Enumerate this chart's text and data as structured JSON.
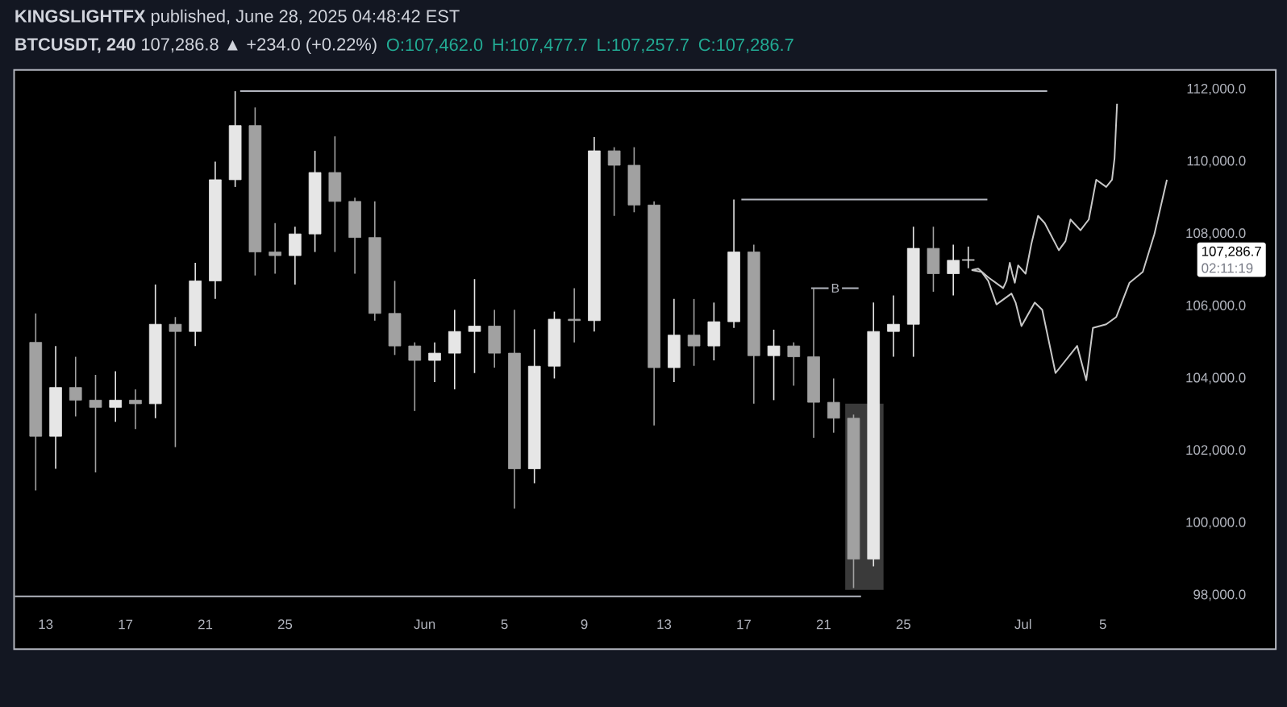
{
  "chart_data": {
    "type": "candlestick",
    "title": "**KINGSLIGHTFX** published, June 28, 2025 04:48:42 EST",
    "subtitle": "**BTCUSDT, 240** 107,286.8 ▲ +234.0 (+0.22%)",
    "annotations": [
      "O:107,462.0",
      "H:107,477.7",
      "L:107,257.7",
      "C:107,286.7",
      "107,286.7",
      "02:11:19",
      {
        "text": "B",
        "x": "2025-06-21T14:00",
        "y": 106500
      }
    ],
    "colors": [
      "#a1a1a1",
      "#e6e6e6",
      "#a1a1a1",
      "#a1a1a1",
      "#e6e6e6",
      "#a1a1a1",
      "#e6e6e6",
      "#a1a1a1",
      "#e6e6e6",
      "#e6e6e6",
      "#e6e6e6",
      "#a1a1a1",
      "#a1a1a1",
      "#e6e6e6",
      "#e6e6e6",
      "#a1a1a1",
      "#a1a1a1",
      "#a1a1a1",
      "#a1a1a1",
      "#a1a1a1",
      "#e6e6e6",
      "#e6e6e6",
      "#e6e6e6",
      "#a1a1a1",
      "#a1a1a1",
      "#e6e6e6",
      "#e6e6e6",
      "#a1a1a1",
      "#e6e6e6",
      "#a1a1a1",
      "#a1a1a1",
      "#a1a1a1",
      "#e6e6e6",
      "#a1a1a1",
      "#e6e6e6",
      "#e6e6e6",
      "#a1a1a1",
      "#e6e6e6",
      "#a1a1a1",
      "#a1a1a1",
      "#a1a1a1",
      "#a1a1a1",
      "#e6e6e6",
      "#e6e6e6",
      "#e6e6e6",
      "#a1a1a1",
      "#e6e6e6",
      "#e6e6e6"
    ],
    "x": [
      "2025-05-12T12:00",
      "2025-05-13T12:00",
      "2025-05-14T12:00",
      "2025-05-15T12:00",
      "2025-05-16T12:00",
      "2025-05-17T12:00",
      "2025-05-18T12:00",
      "2025-05-19T12:00",
      "2025-05-20T12:00",
      "2025-05-21T12:00",
      "2025-05-22T12:00",
      "2025-05-23T12:00",
      "2025-05-24T12:00",
      "2025-05-25T12:00",
      "2025-05-26T12:00",
      "2025-05-27T12:00",
      "2025-05-28T12:00",
      "2025-05-29T12:00",
      "2025-05-30T12:00",
      "2025-05-31T12:00",
      "2025-06-01T12:00",
      "2025-06-02T12:00",
      "2025-06-03T12:00",
      "2025-06-04T12:00",
      "2025-06-05T12:00",
      "2025-06-06T12:00",
      "2025-06-07T12:00",
      "2025-06-08T12:00",
      "2025-06-09T12:00",
      "2025-06-10T12:00",
      "2025-06-11T12:00",
      "2025-06-12T12:00",
      "2025-06-13T12:00",
      "2025-06-14T12:00",
      "2025-06-15T12:00",
      "2025-06-16T12:00",
      "2025-06-17T12:00",
      "2025-06-18T12:00",
      "2025-06-19T12:00",
      "2025-06-20T12:00",
      "2025-06-21T12:00",
      "2025-06-22T12:00",
      "2025-06-23T12:00",
      "2025-06-24T12:00",
      "2025-06-25T12:00",
      "2025-06-26T12:00",
      "2025-06-27T12:00",
      "2025-06-28T06:00"
    ],
    "ohlc": [
      [
        105000,
        105800,
        100900,
        102400
      ],
      [
        102400,
        104900,
        101500,
        103750
      ],
      [
        103750,
        104600,
        102950,
        103400
      ],
      [
        103400,
        104100,
        101400,
        103200
      ],
      [
        103200,
        104200,
        102800,
        103400
      ],
      [
        103400,
        103700,
        102600,
        103300
      ],
      [
        103300,
        106600,
        102900,
        105500
      ],
      [
        105500,
        105700,
        102100,
        105300
      ],
      [
        105300,
        107200,
        104900,
        106700
      ],
      [
        106700,
        110000,
        106200,
        109500
      ],
      [
        109500,
        111950,
        109300,
        111000
      ],
      [
        111000,
        111500,
        106850,
        107500
      ],
      [
        107500,
        108300,
        106900,
        107400
      ],
      [
        107400,
        108200,
        106600,
        108000
      ],
      [
        108000,
        110300,
        107500,
        109700
      ],
      [
        109700,
        110700,
        107500,
        108900
      ],
      [
        108900,
        109000,
        106900,
        107900
      ],
      [
        107900,
        108900,
        105600,
        105800
      ],
      [
        105800,
        106700,
        104650,
        104900
      ],
      [
        104900,
        105000,
        103100,
        104500
      ],
      [
        104500,
        105000,
        103900,
        104700
      ],
      [
        104700,
        105900,
        103700,
        105300
      ],
      [
        105300,
        106750,
        104150,
        105450
      ],
      [
        105450,
        105900,
        104300,
        104700
      ],
      [
        104700,
        105900,
        100400,
        101500
      ],
      [
        101500,
        105360,
        101100,
        104340
      ],
      [
        104340,
        105850,
        104000,
        105640
      ],
      [
        105640,
        106500,
        105000,
        105600
      ],
      [
        105600,
        110680,
        105300,
        110300
      ],
      [
        110300,
        110400,
        108500,
        109900
      ],
      [
        109900,
        110400,
        108600,
        108800
      ],
      [
        108800,
        108900,
        102700,
        104300
      ],
      [
        104300,
        106200,
        103900,
        105200
      ],
      [
        105200,
        106200,
        104350,
        104900
      ],
      [
        104900,
        106100,
        104500,
        105570
      ],
      [
        105570,
        108950,
        105400,
        107500
      ],
      [
        107500,
        107700,
        103300,
        104630
      ],
      [
        104630,
        105350,
        103400,
        104900
      ],
      [
        104900,
        105000,
        103800,
        104600
      ],
      [
        104600,
        106500,
        102360,
        103340
      ],
      [
        103340,
        104000,
        102500,
        102900
      ],
      [
        102900,
        103000,
        98200,
        99000
      ],
      [
        99000,
        106100,
        98800,
        105300
      ],
      [
        105300,
        106300,
        104600,
        105500
      ],
      [
        105500,
        108200,
        104600,
        107600
      ],
      [
        107600,
        108200,
        106400,
        106900
      ],
      [
        106900,
        107700,
        106300,
        107270
      ],
      [
        107270,
        107650,
        107050,
        107286.7
      ]
    ],
    "series": [
      {
        "type": "bar",
        "x": [
          "2025-06-23T01:00"
        ],
        "base": [
          98150
        ],
        "values": [
          5150
        ],
        "color": "#3a3a3a"
      },
      {
        "type": "line",
        "x": [
          "2025-05-22T18:00",
          "2025-07-02T05:00"
        ],
        "values": [
          111950,
          111950
        ],
        "color": "#b2b5be"
      },
      {
        "type": "line",
        "x": [
          "2025-06-16T21:00",
          "2025-06-29T05:00"
        ],
        "values": [
          108950,
          108950
        ],
        "color": "#b2b5be"
      },
      {
        "type": "line",
        "x": [
          "2025-05-11T11:00",
          "2025-06-22T21:00"
        ],
        "values": [
          97970,
          97970
        ],
        "color": "#b2b5be"
      },
      {
        "type": "line",
        "x": [
          "2025-06-20T09:00",
          "2025-06-22T18:00"
        ],
        "values": [
          106500,
          106500
        ],
        "color": "#b2b5be"
      },
      {
        "type": "line",
        "x": [
          "2025-06-28T10:00",
          "2025-06-28T18:00",
          "2025-06-29T06:00",
          "2025-06-30T00:00",
          "2025-06-30T04:00",
          "2025-06-30T08:00",
          "2025-06-30T11:00",
          "2025-06-30T14:00",
          "2025-06-30T18:00",
          "2025-07-01T03:00",
          "2025-07-01T10:00",
          "2025-07-01T18:00",
          "2025-07-02T02:00",
          "2025-07-02T19:00",
          "2025-07-03T03:00",
          "2025-07-03T09:00",
          "2025-07-03T21:00",
          "2025-07-04T07:00",
          "2025-07-04T16:00",
          "2025-07-05T04:00",
          "2025-07-05T11:00",
          "2025-07-05T14:00",
          "2025-07-05T17:00"
        ],
        "values": [
          107000,
          107040,
          106800,
          106500,
          106700,
          107200,
          106900,
          106650,
          107130,
          106900,
          107730,
          108500,
          108300,
          107550,
          107800,
          108400,
          108100,
          108400,
          109500,
          109300,
          109500,
          110100,
          111600
        ],
        "color": "#c8c8c8"
      },
      {
        "type": "line",
        "x": [
          "2025-06-28T10:00",
          "2025-06-28T22:00",
          "2025-06-29T06:00",
          "2025-06-29T16:00",
          "2025-06-30T10:00",
          "2025-06-30T15:00",
          "2025-06-30T22:00",
          "2025-07-01T14:00",
          "2025-07-01T23:00",
          "2025-07-02T15:00",
          "2025-07-03T17:00",
          "2025-07-04T04:00",
          "2025-07-04T12:00",
          "2025-07-05T04:00",
          "2025-07-05T16:00",
          "2025-07-06T08:00",
          "2025-07-07T00:00",
          "2025-07-07T14:00",
          "2025-07-08T05:00"
        ],
        "values": [
          107000,
          106950,
          106700,
          106050,
          106350,
          106100,
          105450,
          106100,
          105900,
          104150,
          104900,
          103950,
          105400,
          105500,
          105700,
          106650,
          106950,
          108000,
          109500
        ],
        "color": "#c8c8c8"
      }
    ],
    "xlim": [
      "2025-05-11T10:00",
      "2025-07-13T16:00"
    ],
    "xticks": [
      {
        "value": "2025-05-13",
        "label": "13"
      },
      {
        "value": "2025-05-17",
        "label": "17"
      },
      {
        "value": "2025-05-21",
        "label": "21"
      },
      {
        "value": "2025-05-25",
        "label": "25"
      },
      {
        "value": "2025-06-01",
        "label": "Jun"
      },
      {
        "value": "2025-06-05",
        "label": "5"
      },
      {
        "value": "2025-06-09",
        "label": "9"
      },
      {
        "value": "2025-06-13",
        "label": "13"
      },
      {
        "value": "2025-06-17",
        "label": "17"
      },
      {
        "value": "2025-06-21",
        "label": "21"
      },
      {
        "value": "2025-06-25",
        "label": "25"
      },
      {
        "value": "2025-07-01",
        "label": "Jul"
      },
      {
        "value": "2025-07-05",
        "label": "5"
      }
    ],
    "ylim": [
      96510,
      112540
    ],
    "yticks": [
      {
        "value": 98000,
        "label": "98,000.0"
      },
      {
        "value": 100000,
        "label": "100,000.0"
      },
      {
        "value": 102000,
        "label": "102,000.0"
      },
      {
        "value": 104000,
        "label": "104,000.0"
      },
      {
        "value": 106000,
        "label": "106,000.0"
      },
      {
        "value": 108000,
        "label": "108,000.0"
      },
      {
        "value": 110000,
        "label": "110,000.0"
      },
      {
        "value": 112000,
        "label": "112,000.0"
      }
    ]
  }
}
